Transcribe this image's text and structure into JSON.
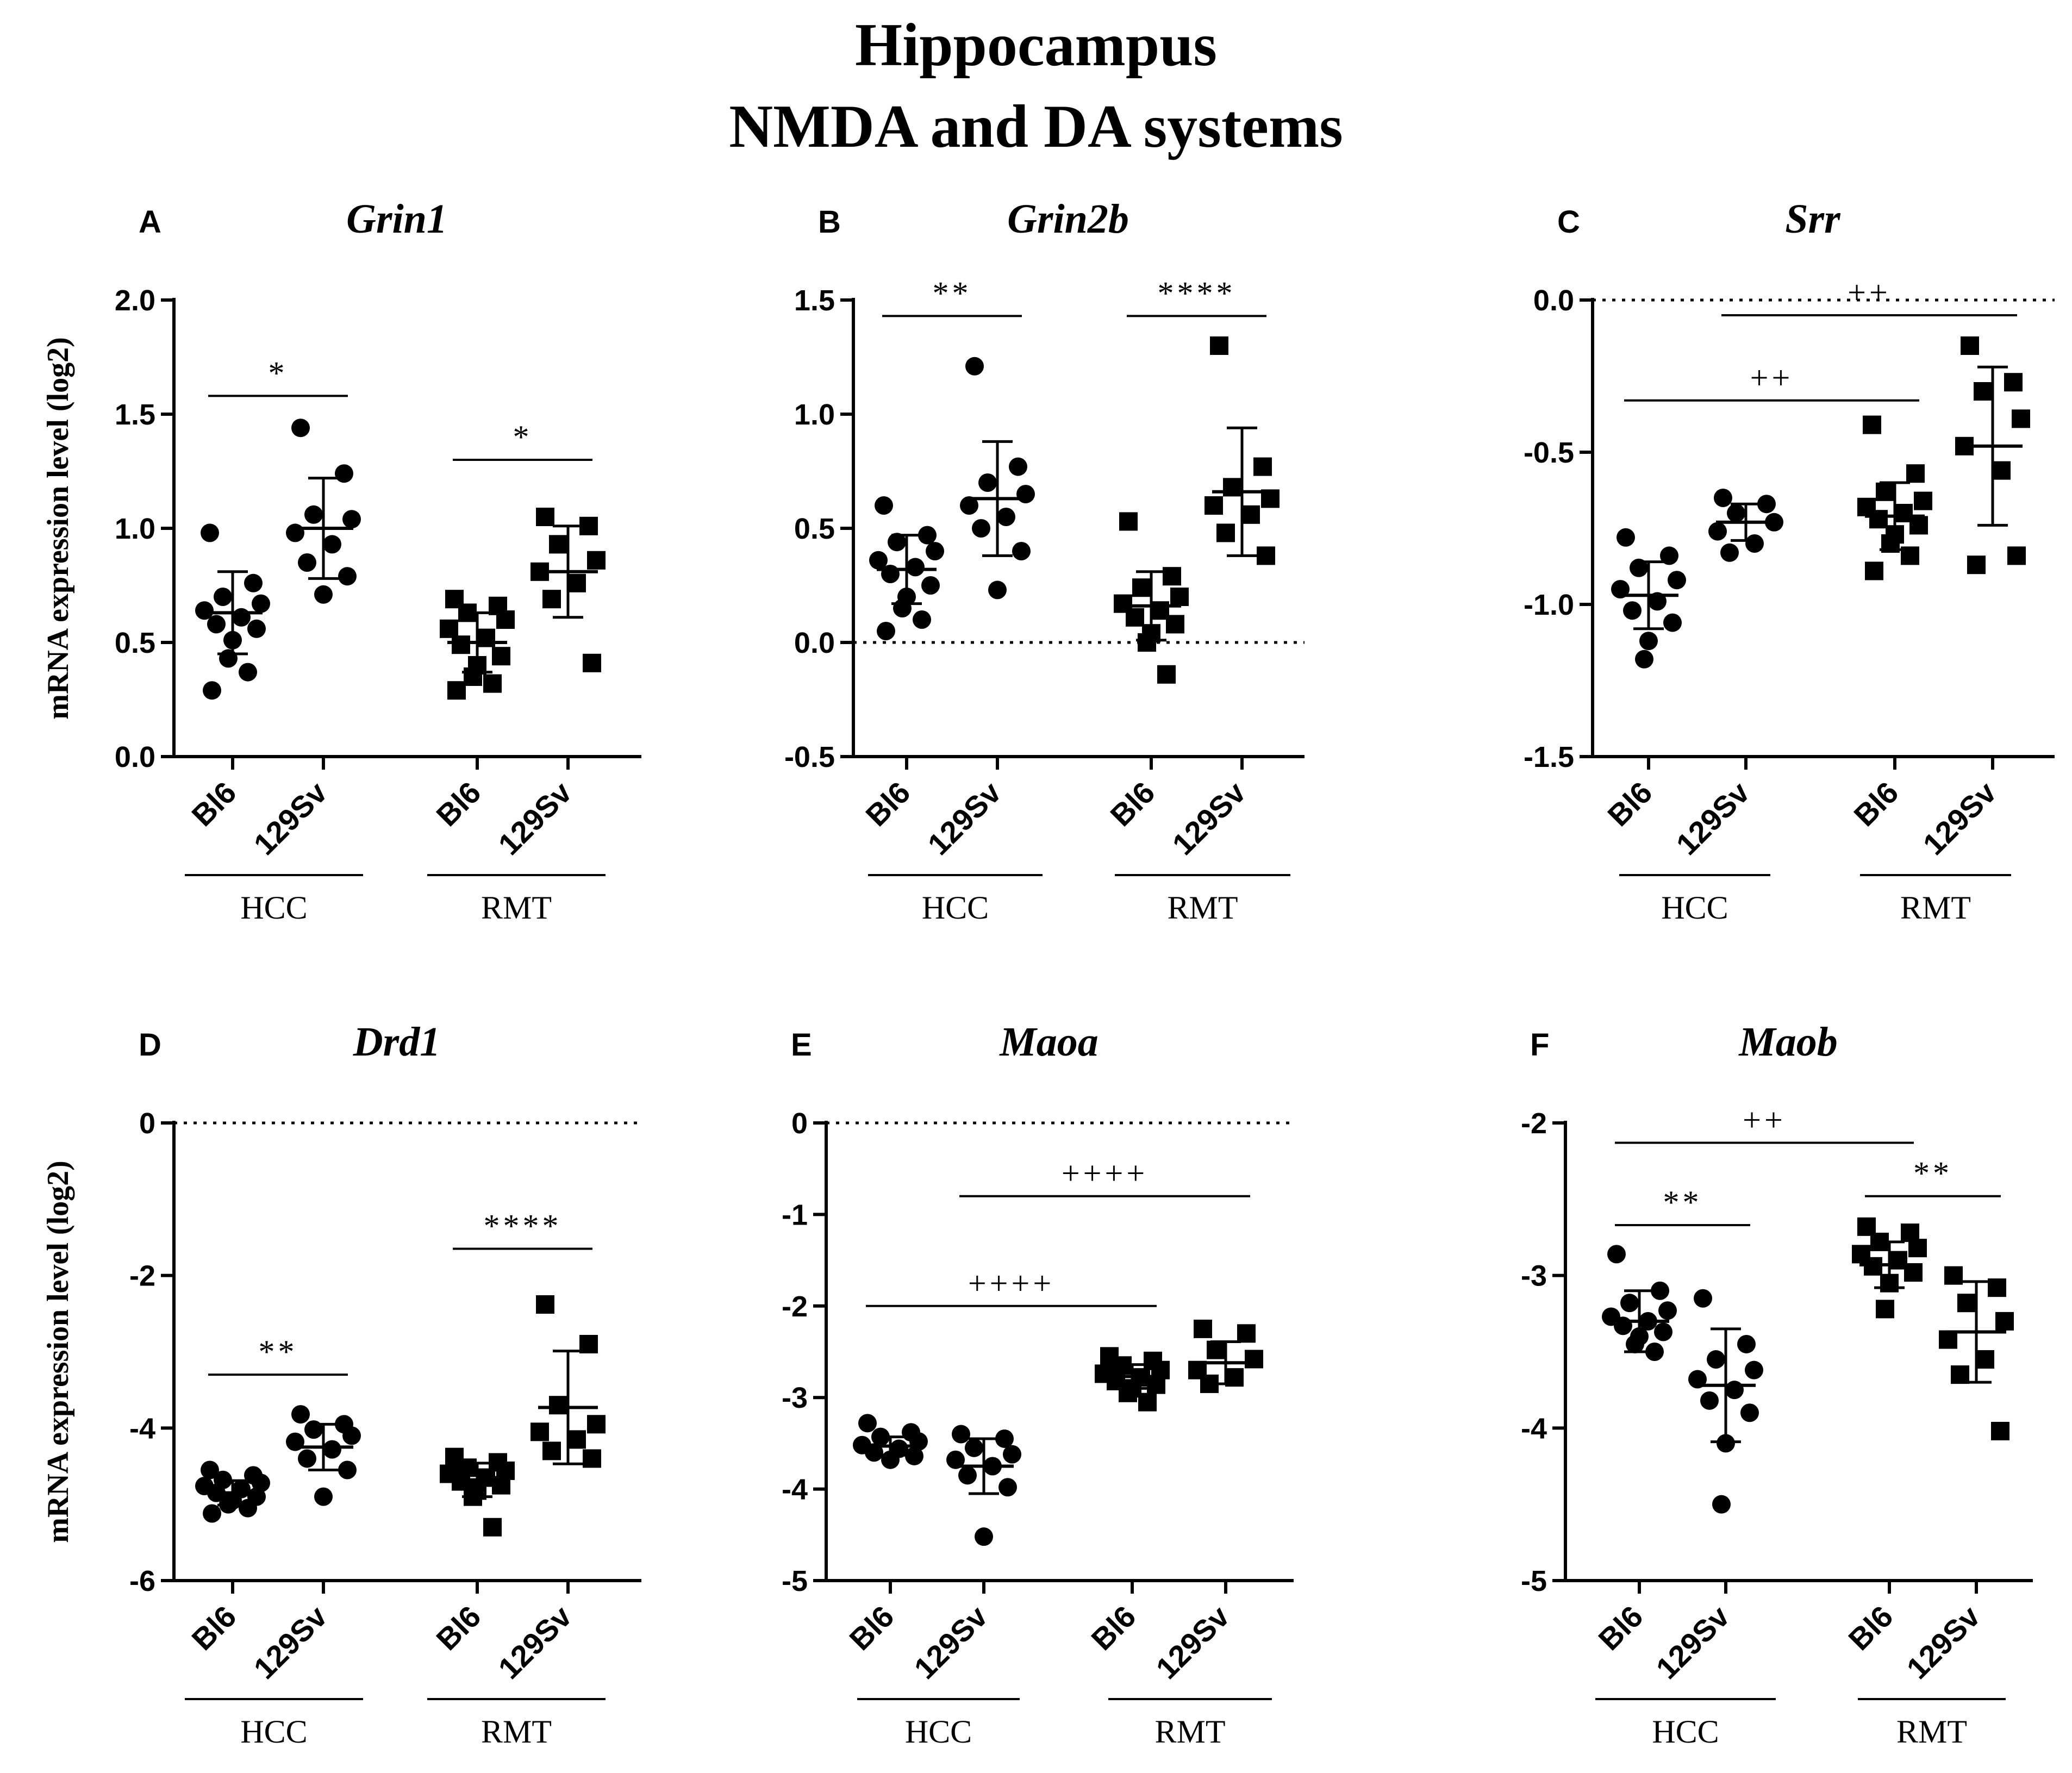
{
  "figure": {
    "title_line1": "Hippocampus",
    "title_line2": "NMDA and DA systems",
    "y_axis_label": "mRNA expression level (log2)",
    "colors": {
      "ink": "#000000",
      "background": "#ffffff"
    },
    "icons": {
      "bl6_marker": "filled-circle",
      "129sv_marker": "filled-square"
    }
  },
  "chart_data": [
    {
      "panel": "A",
      "gene": "Grin1",
      "type": "scatter",
      "ylabel": "mRNA expression level (log2)",
      "ylim": [
        0,
        2
      ],
      "yticks": [
        0,
        0.5,
        1,
        1.5,
        2
      ],
      "ytick_labels": [
        "0.0",
        "0.5",
        "1.0",
        "1.5",
        "2.0"
      ],
      "zero_line": false,
      "categories": [
        "Bl6",
        "129Sv",
        "Bl6",
        "129Sv"
      ],
      "groups": [
        "HCC",
        "RMT"
      ],
      "series": [
        {
          "name": "HCC Bl6",
          "marker": "circle",
          "points": [
            0.98,
            0.76,
            0.7,
            0.67,
            0.64,
            0.61,
            0.58,
            0.56,
            0.51,
            0.43,
            0.37,
            0.29
          ],
          "mean": 0.63,
          "sd": 0.18
        },
        {
          "name": "HCC 129Sv",
          "marker": "circle",
          "points": [
            1.44,
            1.24,
            1.06,
            1.04,
            0.98,
            0.93,
            0.85,
            0.79,
            0.71
          ],
          "mean": 1.0,
          "sd": 0.22
        },
        {
          "name": "RMT Bl6",
          "marker": "square",
          "points": [
            0.69,
            0.66,
            0.63,
            0.6,
            0.56,
            0.52,
            0.49,
            0.44,
            0.4,
            0.35,
            0.32,
            0.29
          ],
          "mean": 0.5,
          "sd": 0.13
        },
        {
          "name": "RMT 129Sv",
          "marker": "square",
          "points": [
            1.05,
            1.01,
            0.93,
            0.86,
            0.81,
            0.76,
            0.69,
            0.41
          ],
          "mean": 0.81,
          "sd": 0.2
        }
      ],
      "annotations": [
        {
          "text": "*",
          "from": 0,
          "to": 1,
          "y": 1.58
        },
        {
          "text": "*",
          "from": 2,
          "to": 3,
          "y": 1.3
        }
      ]
    },
    {
      "panel": "B",
      "gene": "Grin2b",
      "type": "scatter",
      "ylabel": "",
      "ylim": [
        -0.5,
        1.5
      ],
      "yticks": [
        -0.5,
        0,
        0.5,
        1,
        1.5
      ],
      "ytick_labels": [
        "-0.5",
        "0.0",
        "0.5",
        "1.0",
        "1.5"
      ],
      "zero_line": true,
      "categories": [
        "Bl6",
        "129Sv",
        "Bl6",
        "129Sv"
      ],
      "groups": [
        "HCC",
        "RMT"
      ],
      "series": [
        {
          "name": "HCC Bl6",
          "marker": "circle",
          "points": [
            0.6,
            0.47,
            0.44,
            0.4,
            0.36,
            0.33,
            0.3,
            0.25,
            0.2,
            0.15,
            0.1,
            0.05
          ],
          "mean": 0.32,
          "sd": 0.15
        },
        {
          "name": "HCC 129Sv",
          "marker": "circle",
          "points": [
            1.21,
            0.77,
            0.7,
            0.65,
            0.6,
            0.55,
            0.5,
            0.4,
            0.23
          ],
          "mean": 0.63,
          "sd": 0.25
        },
        {
          "name": "RMT Bl6",
          "marker": "square",
          "points": [
            0.53,
            0.29,
            0.24,
            0.2,
            0.17,
            0.14,
            0.11,
            0.08,
            0.04,
            0.0,
            -0.14
          ],
          "mean": 0.16,
          "sd": 0.15
        },
        {
          "name": "RMT 129Sv",
          "marker": "square",
          "points": [
            1.3,
            0.77,
            0.68,
            0.63,
            0.6,
            0.56,
            0.48,
            0.38
          ],
          "mean": 0.66,
          "sd": 0.28
        }
      ],
      "annotations": [
        {
          "text": "**",
          "from": 0,
          "to": 1,
          "y": 1.43
        },
        {
          "text": "****",
          "from": 2,
          "to": 3,
          "y": 1.43
        }
      ]
    },
    {
      "panel": "C",
      "gene": "Srr",
      "type": "scatter",
      "ylabel": "",
      "ylim": [
        -1.5,
        0
      ],
      "yticks": [
        -1.5,
        -1,
        -0.5,
        0
      ],
      "ytick_labels": [
        "-1.5",
        "-1.0",
        "-0.5",
        "0.0"
      ],
      "zero_line": true,
      "categories": [
        "Bl6",
        "129Sv",
        "Bl6",
        "129Sv"
      ],
      "groups": [
        "HCC",
        "RMT"
      ],
      "series": [
        {
          "name": "HCC Bl6",
          "marker": "circle",
          "points": [
            -0.78,
            -0.84,
            -0.88,
            -0.92,
            -0.95,
            -0.99,
            -1.02,
            -1.06,
            -1.12,
            -1.18
          ],
          "mean": -0.97,
          "sd": 0.11
        },
        {
          "name": "HCC 129Sv",
          "marker": "circle",
          "points": [
            -0.65,
            -0.67,
            -0.7,
            -0.73,
            -0.76,
            -0.8,
            -0.83
          ],
          "mean": -0.73,
          "sd": 0.06
        },
        {
          "name": "RMT Bl6",
          "marker": "square",
          "points": [
            -0.41,
            -0.57,
            -0.63,
            -0.66,
            -0.68,
            -0.7,
            -0.72,
            -0.74,
            -0.77,
            -0.8,
            -0.84,
            -0.89
          ],
          "mean": -0.71,
          "sd": 0.11
        },
        {
          "name": "RMT 129Sv",
          "marker": "square",
          "points": [
            -0.15,
            -0.27,
            -0.3,
            -0.39,
            -0.48,
            -0.56,
            -0.87,
            -0.84
          ],
          "mean": -0.48,
          "sd": 0.26
        }
      ],
      "annotations": [
        {
          "text": "++",
          "from": 1,
          "to": 3,
          "y": -0.05
        },
        {
          "text": "++",
          "from": 0,
          "to": 2,
          "y": -0.33
        }
      ]
    },
    {
      "panel": "D",
      "gene": "Drd1",
      "type": "scatter",
      "ylabel": "mRNA expression level (log2)",
      "ylim": [
        -6,
        0
      ],
      "yticks": [
        -6,
        -4,
        -2,
        0
      ],
      "ytick_labels": [
        "-6",
        "-4",
        "-2",
        "0"
      ],
      "zero_line": true,
      "categories": [
        "Bl6",
        "129Sv",
        "Bl6",
        "129Sv"
      ],
      "groups": [
        "HCC",
        "RMT"
      ],
      "series": [
        {
          "name": "HCC Bl6",
          "marker": "circle",
          "points": [
            -4.55,
            -4.62,
            -4.68,
            -4.72,
            -4.76,
            -4.8,
            -4.85,
            -4.9,
            -4.95,
            -5.0,
            -5.05,
            -5.12
          ],
          "mean": -4.85,
          "sd": 0.16
        },
        {
          "name": "HCC 129Sv",
          "marker": "circle",
          "points": [
            -3.82,
            -3.95,
            -4.02,
            -4.1,
            -4.18,
            -4.28,
            -4.4,
            -4.55,
            -4.9
          ],
          "mean": -4.25,
          "sd": 0.3
        },
        {
          "name": "RMT Bl6",
          "marker": "square",
          "points": [
            -4.38,
            -4.45,
            -4.52,
            -4.56,
            -4.6,
            -4.65,
            -4.7,
            -4.75,
            -4.82,
            -4.9,
            -5.3
          ],
          "mean": -4.68,
          "sd": 0.22
        },
        {
          "name": "RMT 129Sv",
          "marker": "square",
          "points": [
            -2.38,
            -2.9,
            -3.7,
            -3.95,
            -4.05,
            -4.15,
            -4.3,
            -4.4
          ],
          "mean": -3.73,
          "sd": 0.74
        }
      ],
      "annotations": [
        {
          "text": "**",
          "from": 0,
          "to": 1,
          "y": -3.3
        },
        {
          "text": "****",
          "from": 2,
          "to": 3,
          "y": -1.65
        }
      ]
    },
    {
      "panel": "E",
      "gene": "Maoa",
      "type": "scatter",
      "ylabel": "",
      "ylim": [
        -5,
        0
      ],
      "yticks": [
        -5,
        -4,
        -3,
        -2,
        -1,
        0
      ],
      "ytick_labels": [
        "-5",
        "-4",
        "-3",
        "-2",
        "-1",
        "0"
      ],
      "zero_line": true,
      "categories": [
        "Bl6",
        "129Sv",
        "Bl6",
        "129Sv"
      ],
      "groups": [
        "HCC",
        "RMT"
      ],
      "series": [
        {
          "name": "HCC Bl6",
          "marker": "circle",
          "points": [
            -3.28,
            -3.38,
            -3.43,
            -3.48,
            -3.52,
            -3.56,
            -3.6,
            -3.64,
            -3.68
          ],
          "mean": -3.53,
          "sd": 0.1
        },
        {
          "name": "HCC 129Sv",
          "marker": "circle",
          "points": [
            -3.4,
            -3.45,
            -3.55,
            -3.62,
            -3.68,
            -3.75,
            -3.85,
            -3.98,
            -4.52
          ],
          "mean": -3.75,
          "sd": 0.3
        },
        {
          "name": "RMT Bl6",
          "marker": "square",
          "points": [
            -2.55,
            -2.6,
            -2.65,
            -2.7,
            -2.74,
            -2.78,
            -2.82,
            -2.86,
            -2.9,
            -2.95,
            -3.05
          ],
          "mean": -2.77,
          "sd": 0.13
        },
        {
          "name": "RMT 129Sv",
          "marker": "square",
          "points": [
            -2.25,
            -2.3,
            -2.48,
            -2.58,
            -2.7,
            -2.78,
            -2.85
          ],
          "mean": -2.62,
          "sd": 0.23
        }
      ],
      "annotations": [
        {
          "text": "++++",
          "from": 1,
          "to": 3,
          "y": -0.8
        },
        {
          "text": "++++",
          "from": 0,
          "to": 2,
          "y": -2.0
        }
      ]
    },
    {
      "panel": "F",
      "gene": "Maob",
      "type": "scatter",
      "ylabel": "",
      "ylim": [
        -5,
        -2
      ],
      "yticks": [
        -5,
        -4,
        -3,
        -2
      ],
      "ytick_labels": [
        "-5",
        "-4",
        "-3",
        "-2"
      ],
      "zero_line": false,
      "categories": [
        "Bl6",
        "129Sv",
        "Bl6",
        "129Sv"
      ],
      "groups": [
        "HCC",
        "RMT"
      ],
      "series": [
        {
          "name": "HCC Bl6",
          "marker": "circle",
          "points": [
            -2.86,
            -3.1,
            -3.18,
            -3.23,
            -3.27,
            -3.3,
            -3.33,
            -3.37,
            -3.4,
            -3.45,
            -3.5
          ],
          "mean": -3.3,
          "sd": 0.2
        },
        {
          "name": "HCC 129Sv",
          "marker": "circle",
          "points": [
            -3.15,
            -3.45,
            -3.55,
            -3.62,
            -3.68,
            -3.75,
            -3.82,
            -3.9,
            -4.1,
            -4.5
          ],
          "mean": -3.72,
          "sd": 0.37
        },
        {
          "name": "RMT Bl6",
          "marker": "square",
          "points": [
            -2.68,
            -2.72,
            -2.78,
            -2.82,
            -2.86,
            -2.9,
            -2.94,
            -2.98,
            -3.05,
            -3.22
          ],
          "mean": -2.93,
          "sd": 0.15
        },
        {
          "name": "RMT 129Sv",
          "marker": "square",
          "points": [
            -3.0,
            -3.08,
            -3.18,
            -3.3,
            -3.42,
            -3.55,
            -3.65,
            -4.02
          ],
          "mean": -3.37,
          "sd": 0.33
        }
      ],
      "annotations": [
        {
          "text": "++",
          "from": 0,
          "to": 2,
          "y": -2.13
        },
        {
          "text": "**",
          "from": 0,
          "to": 1,
          "y": -2.67
        },
        {
          "text": "**",
          "from": 2,
          "to": 3,
          "y": -2.48
        }
      ]
    }
  ]
}
